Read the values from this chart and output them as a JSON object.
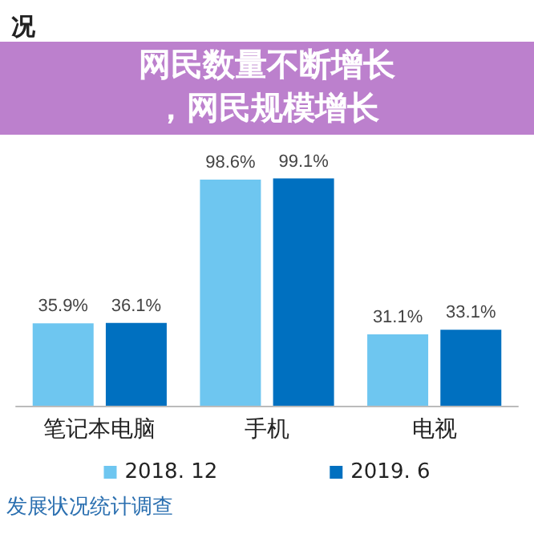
{
  "chart_data": {
    "type": "bar",
    "title": "况",
    "categories": [
      "笔记本电脑",
      "手机",
      "电视"
    ],
    "series": [
      {
        "name": "2018. 12",
        "color": "#6ec6f0",
        "values": [
          35.9,
          98.6,
          31.1
        ],
        "value_labels": [
          "35.9%",
          "98.6%",
          "31.1%"
        ]
      },
      {
        "name": "2019. 6",
        "color": "#0070c0",
        "values": [
          36.1,
          99.1,
          33.1
        ],
        "value_labels": [
          "36.1%",
          "99.1%",
          "33.1%"
        ]
      }
    ],
    "legend": "bottom",
    "annotations": [
      "网民数量不断增长",
      "，网民规模增长",
      "发展状况统计调查"
    ]
  }
}
